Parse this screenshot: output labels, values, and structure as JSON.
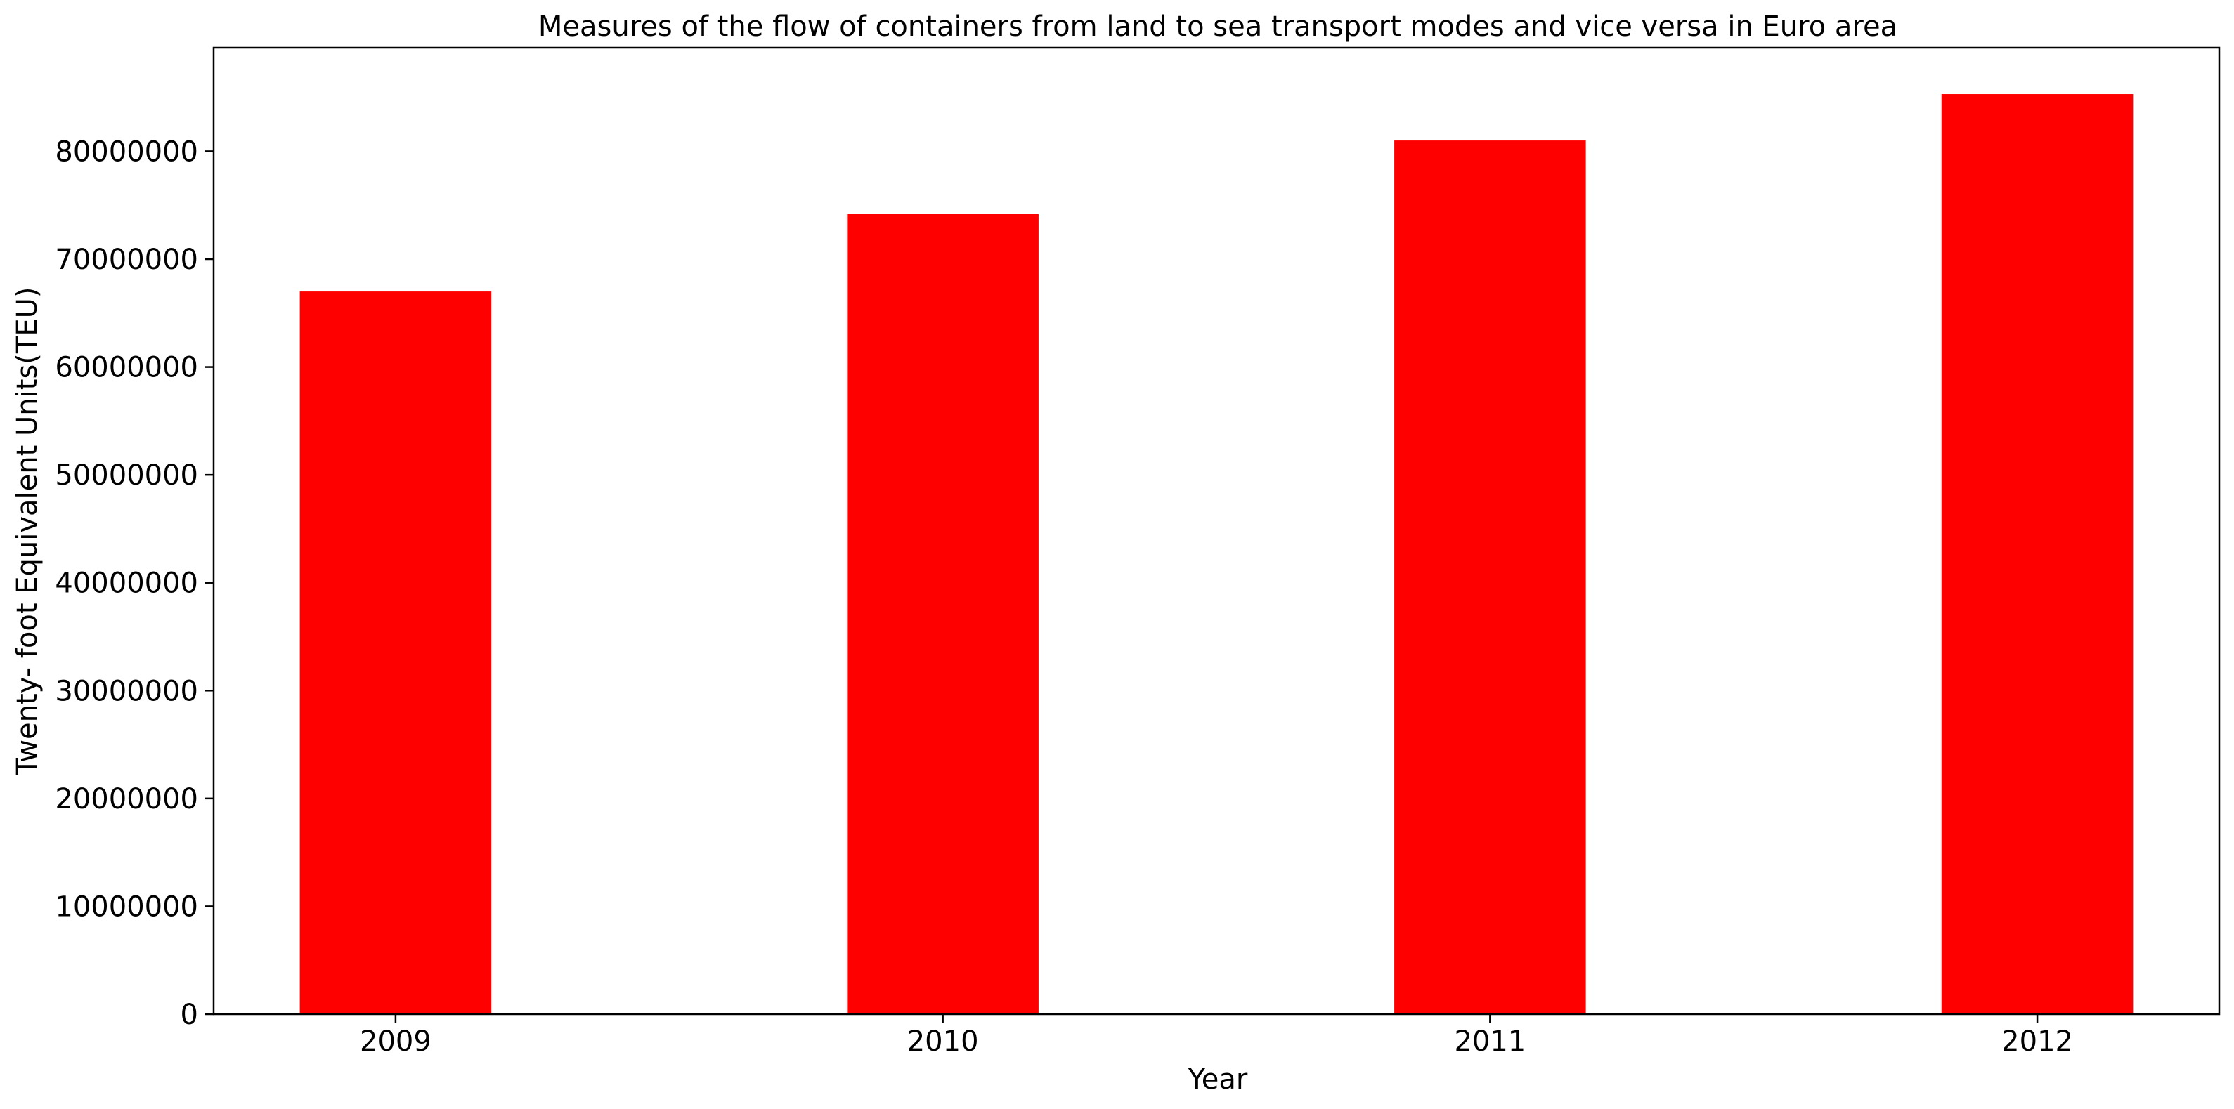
{
  "chart_data": {
    "type": "bar",
    "title": "Measures of the flow of containers from land to sea transport modes and vice versa in Euro area",
    "xlabel": "Year",
    "ylabel": "Twenty- foot Equivalent Units(TEU)",
    "categories": [
      "2009",
      "2010",
      "2011",
      "2012"
    ],
    "values": [
      67000000,
      74200000,
      81000000,
      85300000
    ],
    "ylim": [
      0,
      89600000
    ],
    "yticks": [
      0,
      10000000,
      20000000,
      30000000,
      40000000,
      50000000,
      60000000,
      70000000,
      80000000
    ],
    "ytick_labels": [
      "0",
      "10000000",
      "20000000",
      "30000000",
      "40000000",
      "50000000",
      "60000000",
      "70000000",
      "80000000"
    ],
    "bar_color": "#ff0000",
    "grid": false,
    "legend": "none"
  }
}
